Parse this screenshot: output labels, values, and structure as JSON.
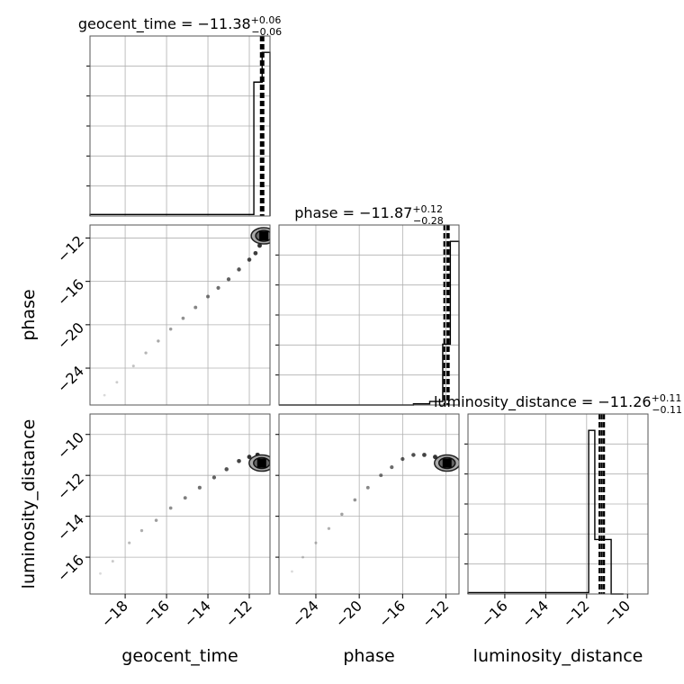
{
  "chart_data": {
    "type": "corner",
    "parameters": [
      "geocent_time",
      "phase",
      "luminosity_distance"
    ],
    "axis_labels": {
      "geocent_time": "geocent_time",
      "phase": "phase",
      "luminosity_distance": "luminosity_distance"
    },
    "titles": [
      {
        "param": "geocent_time",
        "label": "geocent_time = ",
        "value": "−11.38",
        "plus": "+0.06",
        "minus": "−0.06"
      },
      {
        "param": "phase",
        "label": "phase = ",
        "value": "−11.87",
        "plus": "+0.12",
        "minus": "−0.28"
      },
      {
        "param": "luminosity_distance",
        "label": "luminosity_distance = ",
        "value": "−11.26",
        "plus": "+0.11",
        "minus": "−0.11"
      }
    ],
    "ranges": {
      "geocent_time": [
        -19.7,
        -11.0
      ],
      "phase": [
        -27.4,
        -10.8
      ],
      "luminosity_distance": [
        -17.8,
        -9.0
      ]
    },
    "ticks": {
      "geocent_time": [
        -18,
        -16,
        -14,
        -12
      ],
      "phase": [
        -24,
        -20,
        -16,
        -12
      ],
      "luminosity_distance": [
        -16,
        -14,
        -12,
        -10
      ]
    },
    "tick_labels": {
      "geocent_time": [
        "−18",
        "−16",
        "−14",
        "−12"
      ],
      "phase": [
        "−24",
        "−20",
        "−16",
        "−12"
      ],
      "luminosity_distance": [
        "−16",
        "−14",
        "−12",
        "−10"
      ]
    },
    "histograms": {
      "geocent_time": {
        "bin_edges": [
          -19.7,
          -11.78,
          -11.38,
          -11.0
        ],
        "counts": [
          0.5,
          45,
          55
        ],
        "quantile_lines": [
          -11.44,
          -11.38,
          -11.32
        ]
      },
      "phase": {
        "bin_edges": [
          -27.4,
          -15.0,
          -13.5,
          -12.3,
          -11.6,
          -10.8
        ],
        "counts": [
          0,
          0.5,
          1.5,
          26,
          70
        ],
        "quantile_lines": [
          -12.15,
          -11.87,
          -11.75
        ]
      },
      "luminosity_distance": {
        "bin_edges": [
          -17.8,
          -11.9,
          -11.6,
          -10.8,
          -10.2
        ],
        "counts": [
          0.5,
          60,
          20,
          0
        ],
        "quantile_lines": [
          -11.37,
          -11.26,
          -11.15
        ]
      }
    },
    "scatter": {
      "phase_vs_geocent_time": {
        "x_param": "geocent_time",
        "y_param": "phase",
        "points": [
          [
            -19.0,
            -26.5
          ],
          [
            -18.4,
            -25.3
          ],
          [
            -17.6,
            -23.8
          ],
          [
            -17.0,
            -22.6
          ],
          [
            -16.4,
            -21.5
          ],
          [
            -15.8,
            -20.4
          ],
          [
            -15.2,
            -19.4
          ],
          [
            -14.6,
            -18.4
          ],
          [
            -14.0,
            -17.4
          ],
          [
            -13.5,
            -16.6
          ],
          [
            -13.0,
            -15.8
          ],
          [
            -12.5,
            -14.9
          ],
          [
            -12.0,
            -14.0
          ],
          [
            -11.7,
            -13.4
          ],
          [
            -11.5,
            -12.7
          ],
          [
            -11.3,
            -12.0
          ]
        ],
        "density_peak": [
          -11.3,
          -11.8
        ]
      },
      "luminosity_distance_vs_geocent_time": {
        "x_param": "geocent_time",
        "y_param": "luminosity_distance",
        "points": [
          [
            -19.2,
            -16.8
          ],
          [
            -18.6,
            -16.2
          ],
          [
            -17.8,
            -15.3
          ],
          [
            -17.2,
            -14.7
          ],
          [
            -16.5,
            -14.2
          ],
          [
            -15.8,
            -13.6
          ],
          [
            -15.1,
            -13.1
          ],
          [
            -14.4,
            -12.6
          ],
          [
            -13.7,
            -12.1
          ],
          [
            -13.1,
            -11.7
          ],
          [
            -12.5,
            -11.3
          ],
          [
            -12.0,
            -11.1
          ],
          [
            -11.6,
            -11.0
          ]
        ],
        "density_peak": [
          -11.4,
          -11.4
        ]
      },
      "luminosity_distance_vs_phase": {
        "x_param": "phase",
        "y_param": "luminosity_distance",
        "points": [
          [
            -26.2,
            -16.7
          ],
          [
            -25.2,
            -16.0
          ],
          [
            -24.0,
            -15.3
          ],
          [
            -22.8,
            -14.6
          ],
          [
            -21.6,
            -13.9
          ],
          [
            -20.4,
            -13.2
          ],
          [
            -19.2,
            -12.6
          ],
          [
            -18.0,
            -12.0
          ],
          [
            -17.0,
            -11.6
          ],
          [
            -16.0,
            -11.2
          ],
          [
            -15.0,
            -11.0
          ],
          [
            -14.0,
            -11.0
          ],
          [
            -13.0,
            -11.1
          ],
          [
            -12.3,
            -11.2
          ]
        ],
        "density_peak": [
          -11.9,
          -11.4
        ]
      }
    },
    "grid": true
  }
}
